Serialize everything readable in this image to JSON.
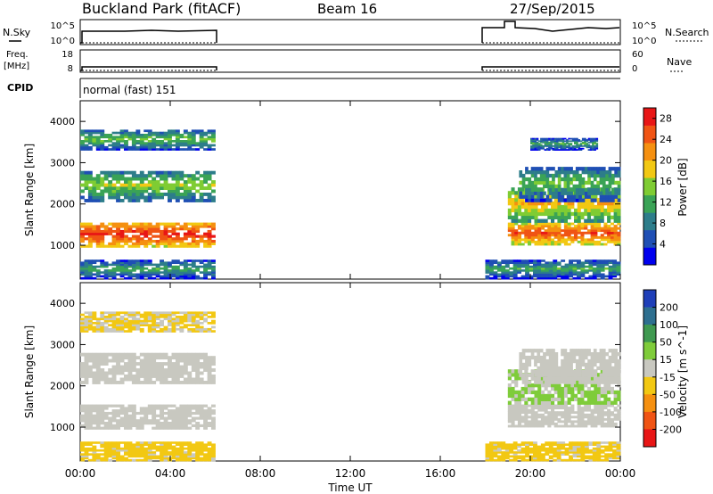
{
  "header": {
    "station": "Buckland Park (fitACF)",
    "beam": "Beam 16",
    "date": "27/Sep/2015"
  },
  "side_labels": {
    "nsky": "N.Sky",
    "freq": "Freq.",
    "freq_unit": "[MHz]",
    "cpid": "CPID",
    "nsearch": "N.Search",
    "nave": "Nave"
  },
  "mini_axes": {
    "nsky_ticks": [
      "10^5",
      "10^0"
    ],
    "nsearch_ticks": [
      "10^5",
      "10^0"
    ],
    "freq_ticks": [
      "18",
      "8"
    ],
    "nave_ticks": [
      "60",
      "0"
    ]
  },
  "cpid_text": "normal (fast) 151",
  "chart_data": [
    {
      "type": "heatmap",
      "id": "power",
      "ylabel": "Slant Range [km]",
      "xlabel": "",
      "yticks": [
        1000,
        2000,
        3000,
        4000
      ],
      "ylim": [
        180,
        4500
      ],
      "colorbar_label": "Power [dB]",
      "colorbar_ticks": [
        4,
        8,
        12,
        16,
        20,
        24,
        28
      ],
      "colorbar_range": [
        0,
        30
      ],
      "colors": [
        "#0000ee",
        "#1f4fb4",
        "#2d7d8a",
        "#3aa356",
        "#7fcc33",
        "#f2c813",
        "#f59010",
        "#f05414",
        "#e81616"
      ],
      "data_time_ranges_h": [
        [
          0,
          6
        ],
        [
          18,
          24
        ]
      ],
      "bands": [
        {
          "t0": 0,
          "t1": 6,
          "r0": 950,
          "r1": 1550,
          "level": 24
        },
        {
          "t0": 0,
          "t1": 6,
          "r0": 2050,
          "r1": 2800,
          "level": 12
        },
        {
          "t0": 0,
          "t1": 6,
          "r0": 3300,
          "r1": 3800,
          "level": 10
        },
        {
          "t0": 0,
          "t1": 6,
          "r0": 180,
          "r1": 650,
          "level": 8
        },
        {
          "t0": 19,
          "t1": 24,
          "r0": 1000,
          "r1": 1550,
          "level": 22
        },
        {
          "t0": 19,
          "t1": 24,
          "r0": 1550,
          "r1": 2400,
          "level": 16
        },
        {
          "t0": 19.5,
          "t1": 24,
          "r0": 2050,
          "r1": 2900,
          "level": 10
        },
        {
          "t0": 20,
          "t1": 23,
          "r0": 3300,
          "r1": 3600,
          "level": 8
        },
        {
          "t0": 18,
          "t1": 24,
          "r0": 180,
          "r1": 650,
          "level": 8
        }
      ]
    },
    {
      "type": "heatmap",
      "id": "velocity",
      "ylabel": "Slant Range [km]",
      "xlabel": "Time UT",
      "xticks": [
        "00:00",
        "04:00",
        "08:00",
        "12:00",
        "16:00",
        "20:00",
        "00:00"
      ],
      "xlim_h": [
        0,
        24
      ],
      "yticks": [
        1000,
        2000,
        3000,
        4000
      ],
      "ylim": [
        180,
        4500
      ],
      "colorbar_label": "Velocity [m s^-1]",
      "colorbar_ticks": [
        "200",
        "100",
        "50",
        "15",
        "-15",
        "-50",
        "-100",
        "-200"
      ],
      "colors": [
        "#1f3fb8",
        "#2e6f8f",
        "#3f9950",
        "#7fcc3a",
        "#c8c8c0",
        "#f2c813",
        "#f59010",
        "#f05414",
        "#e81616"
      ],
      "data_time_ranges_h": [
        [
          0,
          6
        ],
        [
          18,
          24
        ]
      ],
      "bands": [
        {
          "t0": 0,
          "t1": 6,
          "r0": 950,
          "r1": 1550,
          "level": 0
        },
        {
          "t0": 0,
          "t1": 6,
          "r0": 2050,
          "r1": 2800,
          "level": 0
        },
        {
          "t0": 0,
          "t1": 6,
          "r0": 3300,
          "r1": 3800,
          "level": -30
        },
        {
          "t0": 0,
          "t1": 6,
          "r0": 180,
          "r1": 650,
          "level": -40
        },
        {
          "t0": 19,
          "t1": 24,
          "r0": 1000,
          "r1": 1550,
          "level": 0
        },
        {
          "t0": 19,
          "t1": 24,
          "r0": 1550,
          "r1": 2400,
          "level": 30
        },
        {
          "t0": 19.5,
          "t1": 24,
          "r0": 2050,
          "r1": 2900,
          "level": 0
        },
        {
          "t0": 18,
          "t1": 24,
          "r0": 180,
          "r1": 650,
          "level": -40
        }
      ]
    }
  ]
}
